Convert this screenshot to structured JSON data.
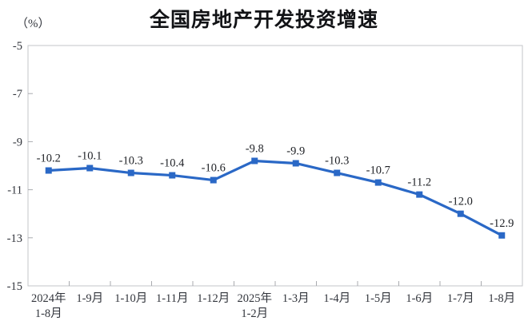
{
  "chart": {
    "title": "全国房地产开发投资增速",
    "unit_label": "（%）"
  },
  "chart_data": {
    "type": "line",
    "title": "全国房地产开发投资增速",
    "ylabel": "（%）",
    "xlabel": "",
    "categories": [
      [
        "2024年",
        "1-8月"
      ],
      [
        "1-9月"
      ],
      [
        "1-10月"
      ],
      [
        "1-11月"
      ],
      [
        "1-12月"
      ],
      [
        "2025年",
        "1-2月"
      ],
      [
        "1-3月"
      ],
      [
        "1-4月"
      ],
      [
        "1-5月"
      ],
      [
        "1-6月"
      ],
      [
        "1-7月"
      ],
      [
        "1-8月"
      ]
    ],
    "series": [
      {
        "name": "全国房地产开发投资增速",
        "values": [
          -10.2,
          -10.1,
          -10.3,
          -10.4,
          -10.6,
          -9.8,
          -9.9,
          -10.3,
          -10.7,
          -11.2,
          -12.0,
          -12.9
        ]
      }
    ],
    "data_labels": [
      "-10.2",
      "-10.1",
      "-10.3",
      "-10.4",
      "-10.6",
      "-9.8",
      "-9.9",
      "-10.3",
      "-10.7",
      "-11.2",
      "-12.0",
      "-12.9"
    ],
    "ylim": [
      -15,
      -5
    ],
    "yticks": [
      -5,
      -7,
      -9,
      -11,
      -13,
      -15
    ],
    "grid": false,
    "legend_position": "none",
    "line_color": "#2a68c6",
    "marker": "square",
    "axis_color": "#c3c5c9",
    "tick_color": "#a9abaf",
    "axis_text_color": "#32353c",
    "data_label_color": "#1e2025"
  }
}
